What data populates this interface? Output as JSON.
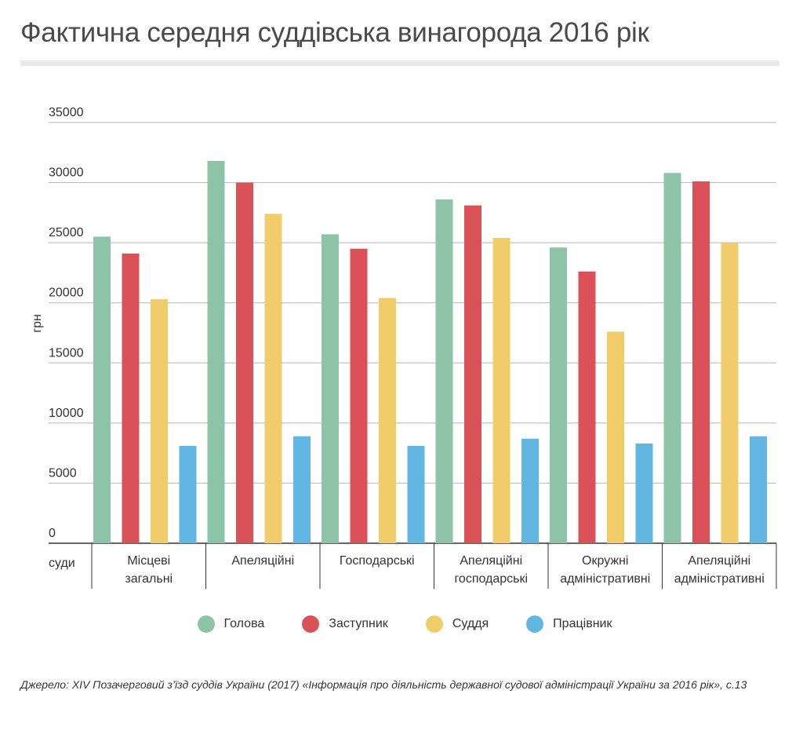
{
  "title": "Фактична середня суддівська винагорода 2016 рік",
  "source": "Джерело: XIV Позачерговий з’їзд суддів України (2017) «Інформація про діяльність державної судової адміністрації України за 2016 рік», с.13",
  "chart_data": {
    "type": "bar",
    "ylabel": "грн",
    "xlabel": "суди",
    "ylim": [
      0,
      35000
    ],
    "yticks": [
      0,
      5000,
      10000,
      15000,
      20000,
      25000,
      30000,
      35000
    ],
    "grid": true,
    "legend_position": "bottom",
    "categories": [
      [
        "Місцеві",
        "загальні"
      ],
      [
        "Апеляційні"
      ],
      [
        "Господарські"
      ],
      [
        "Апеляційні",
        "господарські"
      ],
      [
        "Окружні",
        "адміністративні"
      ],
      [
        "Апеляційні",
        "адміністративні"
      ]
    ],
    "series": [
      {
        "name": "Голова",
        "color": "#8dc3a7",
        "values": [
          25500,
          31800,
          25700,
          28600,
          24600,
          30800
        ]
      },
      {
        "name": "Заступник",
        "color": "#da5257",
        "values": [
          24100,
          30000,
          24500,
          28100,
          22600,
          30100
        ]
      },
      {
        "name": "Суддя",
        "color": "#f0cd6a",
        "values": [
          20300,
          27400,
          20400,
          25400,
          17600,
          25000
        ]
      },
      {
        "name": "Працівник",
        "color": "#62b7e2",
        "values": [
          8100,
          8900,
          8100,
          8700,
          8300,
          8900
        ]
      }
    ]
  }
}
